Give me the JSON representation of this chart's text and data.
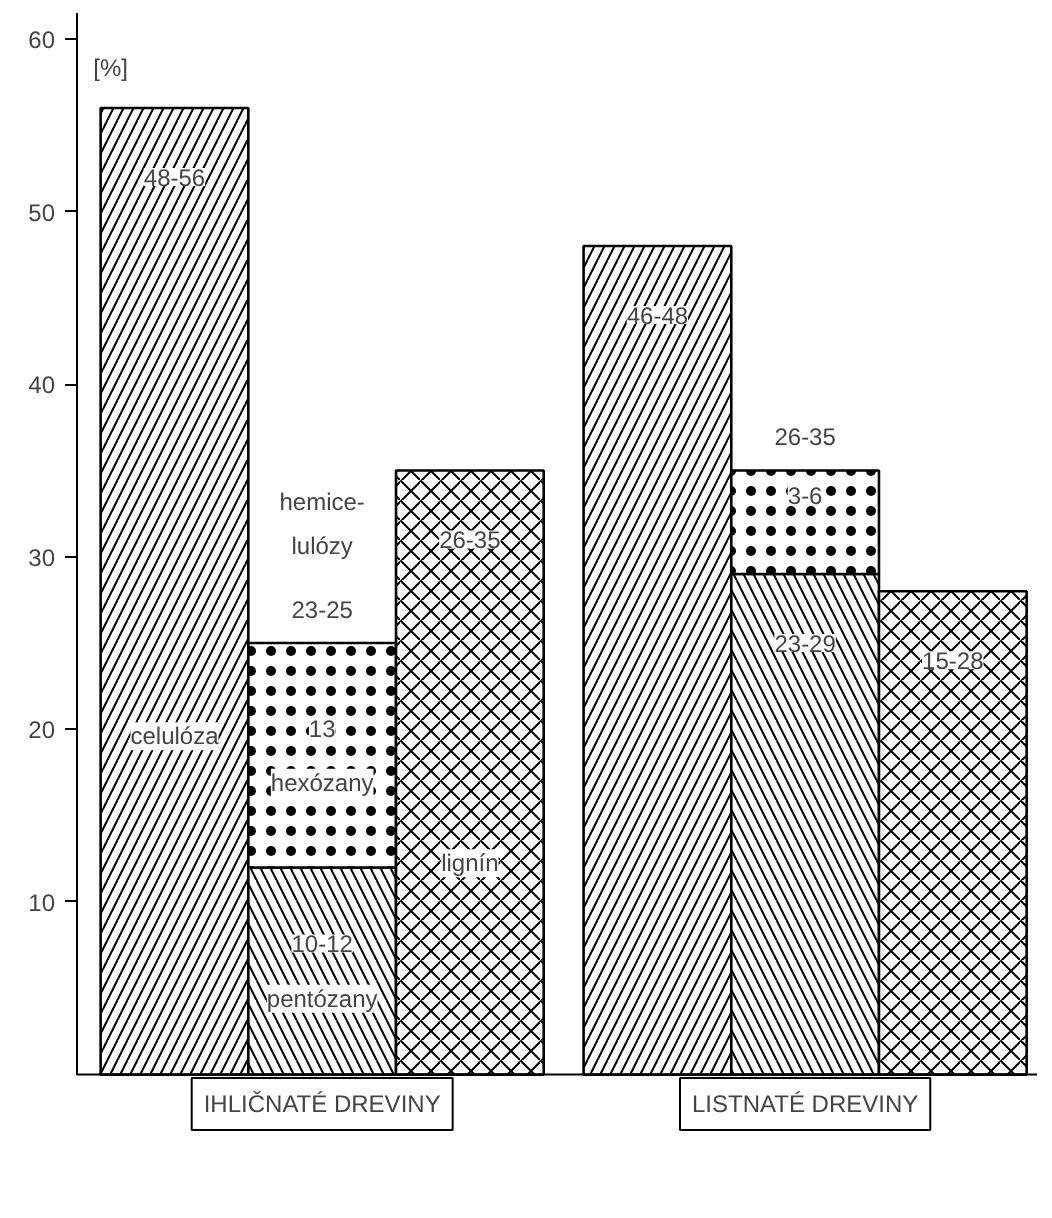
{
  "chart_data": {
    "type": "bar",
    "stacked": true,
    "ylabel": "[%]",
    "categories": [
      null,
      null,
      null,
      null,
      null,
      null
    ],
    "series": [
      {
        "name": "celulóza",
        "color": "#ffffff",
        "values": [
          56,
          null,
          null,
          48,
          null,
          null
        ],
        "value_labels": [
          "48-56",
          null,
          null,
          "46-48",
          null,
          null
        ]
      },
      {
        "name": "pentózany",
        "color": "#ffffff",
        "values": [
          null,
          12,
          null,
          null,
          29,
          null
        ],
        "value_labels": [
          null,
          "10-12",
          null,
          null,
          "23-29",
          null
        ]
      },
      {
        "name": "hexózany",
        "color": "#ffffff",
        "values": [
          null,
          13,
          null,
          null,
          6,
          null
        ],
        "value_labels": [
          null,
          "13",
          null,
          null,
          "3-6",
          null
        ]
      },
      {
        "name": "lignín",
        "color": "#ffffff",
        "values": [
          null,
          null,
          35,
          null,
          null,
          28
        ],
        "value_labels": [
          null,
          null,
          "26-35",
          null,
          null,
          "15-28"
        ]
      }
    ],
    "totals": [
      null,
      "23-25",
      null,
      null,
      "26-35",
      null
    ],
    "annotations": [
      "hemice-\nlulózy",
      "IHLIČNATÉ DREVINY",
      "LISTNATÉ DREVINY"
    ],
    "ylim": [
      0,
      61.5
    ],
    "yticks": [
      10,
      20,
      30,
      40,
      50,
      60
    ]
  }
}
